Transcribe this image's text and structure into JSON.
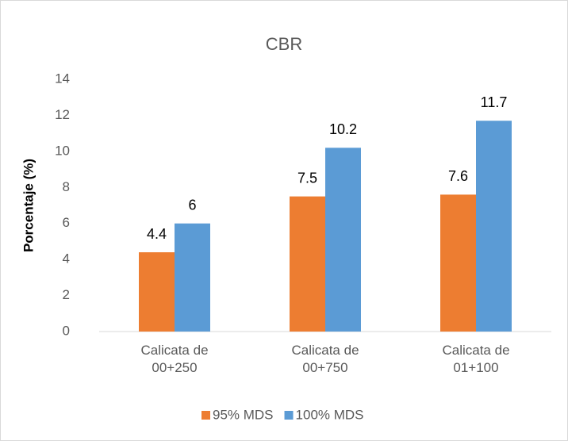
{
  "chart_data": {
    "type": "bar",
    "title": "CBR",
    "y_label": "Porcentaje (%)",
    "categories": [
      "Calicata de\n00+250",
      "Calicata de\n00+750",
      "Calicata de\n01+100"
    ],
    "series": [
      {
        "name": "95% MDS",
        "color": "#ed7d31",
        "values": [
          4.4,
          7.5,
          7.6
        ]
      },
      {
        "name": "100% MDS",
        "color": "#5b9bd5",
        "values": [
          6,
          10.2,
          11.7
        ]
      }
    ],
    "ylim": [
      0,
      14
    ],
    "yticks": [
      0,
      2,
      4,
      6,
      8,
      10,
      12,
      14
    ],
    "grid": false,
    "legend": "bottom"
  }
}
